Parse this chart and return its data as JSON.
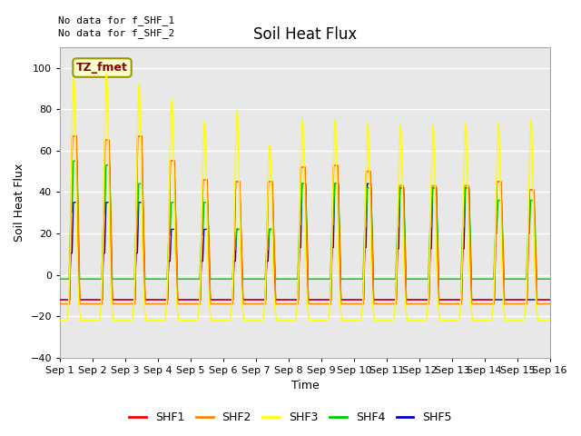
{
  "title": "Soil Heat Flux",
  "xlabel": "Time",
  "ylabel": "Soil Heat Flux",
  "xlim": [
    0,
    15
  ],
  "ylim": [
    -40,
    110
  ],
  "yticks": [
    -40,
    -20,
    0,
    20,
    40,
    60,
    80,
    100
  ],
  "xtick_labels": [
    "Sep 1",
    "Sep 2",
    "Sep 3",
    "Sep 4",
    "Sep 5",
    "Sep 6",
    "Sep 7",
    "Sep 8",
    "Sep 9",
    "Sep 10",
    "Sep 11",
    "Sep 12",
    "Sep 13",
    "Sep 14",
    "Sep 15",
    "Sep 16"
  ],
  "annotation_text": "No data for f_SHF_1\nNo data for f_SHF_2",
  "box_label": "TZ_fmet",
  "box_facecolor": "#ffffcc",
  "box_edgecolor": "#999900",
  "box_textcolor": "#880000",
  "colors": [
    "#ff0000",
    "#ff8800",
    "#ffff00",
    "#00cc00",
    "#0000cc"
  ],
  "linewidth": 1.0,
  "plot_bg_color": "#e8e8e8",
  "grid_color": "#ffffff",
  "title_fontsize": 12,
  "label_fontsize": 9,
  "tick_fontsize": 8,
  "legend_fontsize": 9,
  "day_peaks_shf3": [
    95,
    97,
    92,
    85,
    74,
    79,
    63,
    75,
    75,
    73,
    72,
    72,
    73,
    73,
    75
  ],
  "day_peaks_shf1": [
    67,
    65,
    67,
    55,
    46,
    45,
    45,
    52,
    53,
    50,
    43,
    43,
    43,
    45,
    41
  ],
  "day_peaks_shf2": [
    67,
    65,
    67,
    55,
    46,
    45,
    45,
    52,
    53,
    50,
    43,
    43,
    43,
    45,
    41
  ],
  "day_peaks_shf4": [
    55,
    53,
    44,
    35,
    35,
    22,
    22,
    44,
    44,
    42,
    42,
    42,
    42,
    36,
    36
  ],
  "day_peaks_shf5": [
    35,
    35,
    35,
    22,
    22,
    22,
    22,
    44,
    44,
    44,
    42,
    42,
    42,
    0,
    0
  ],
  "night_vals": [
    -12,
    -14,
    -22,
    -2,
    -12
  ],
  "n_days": 15
}
